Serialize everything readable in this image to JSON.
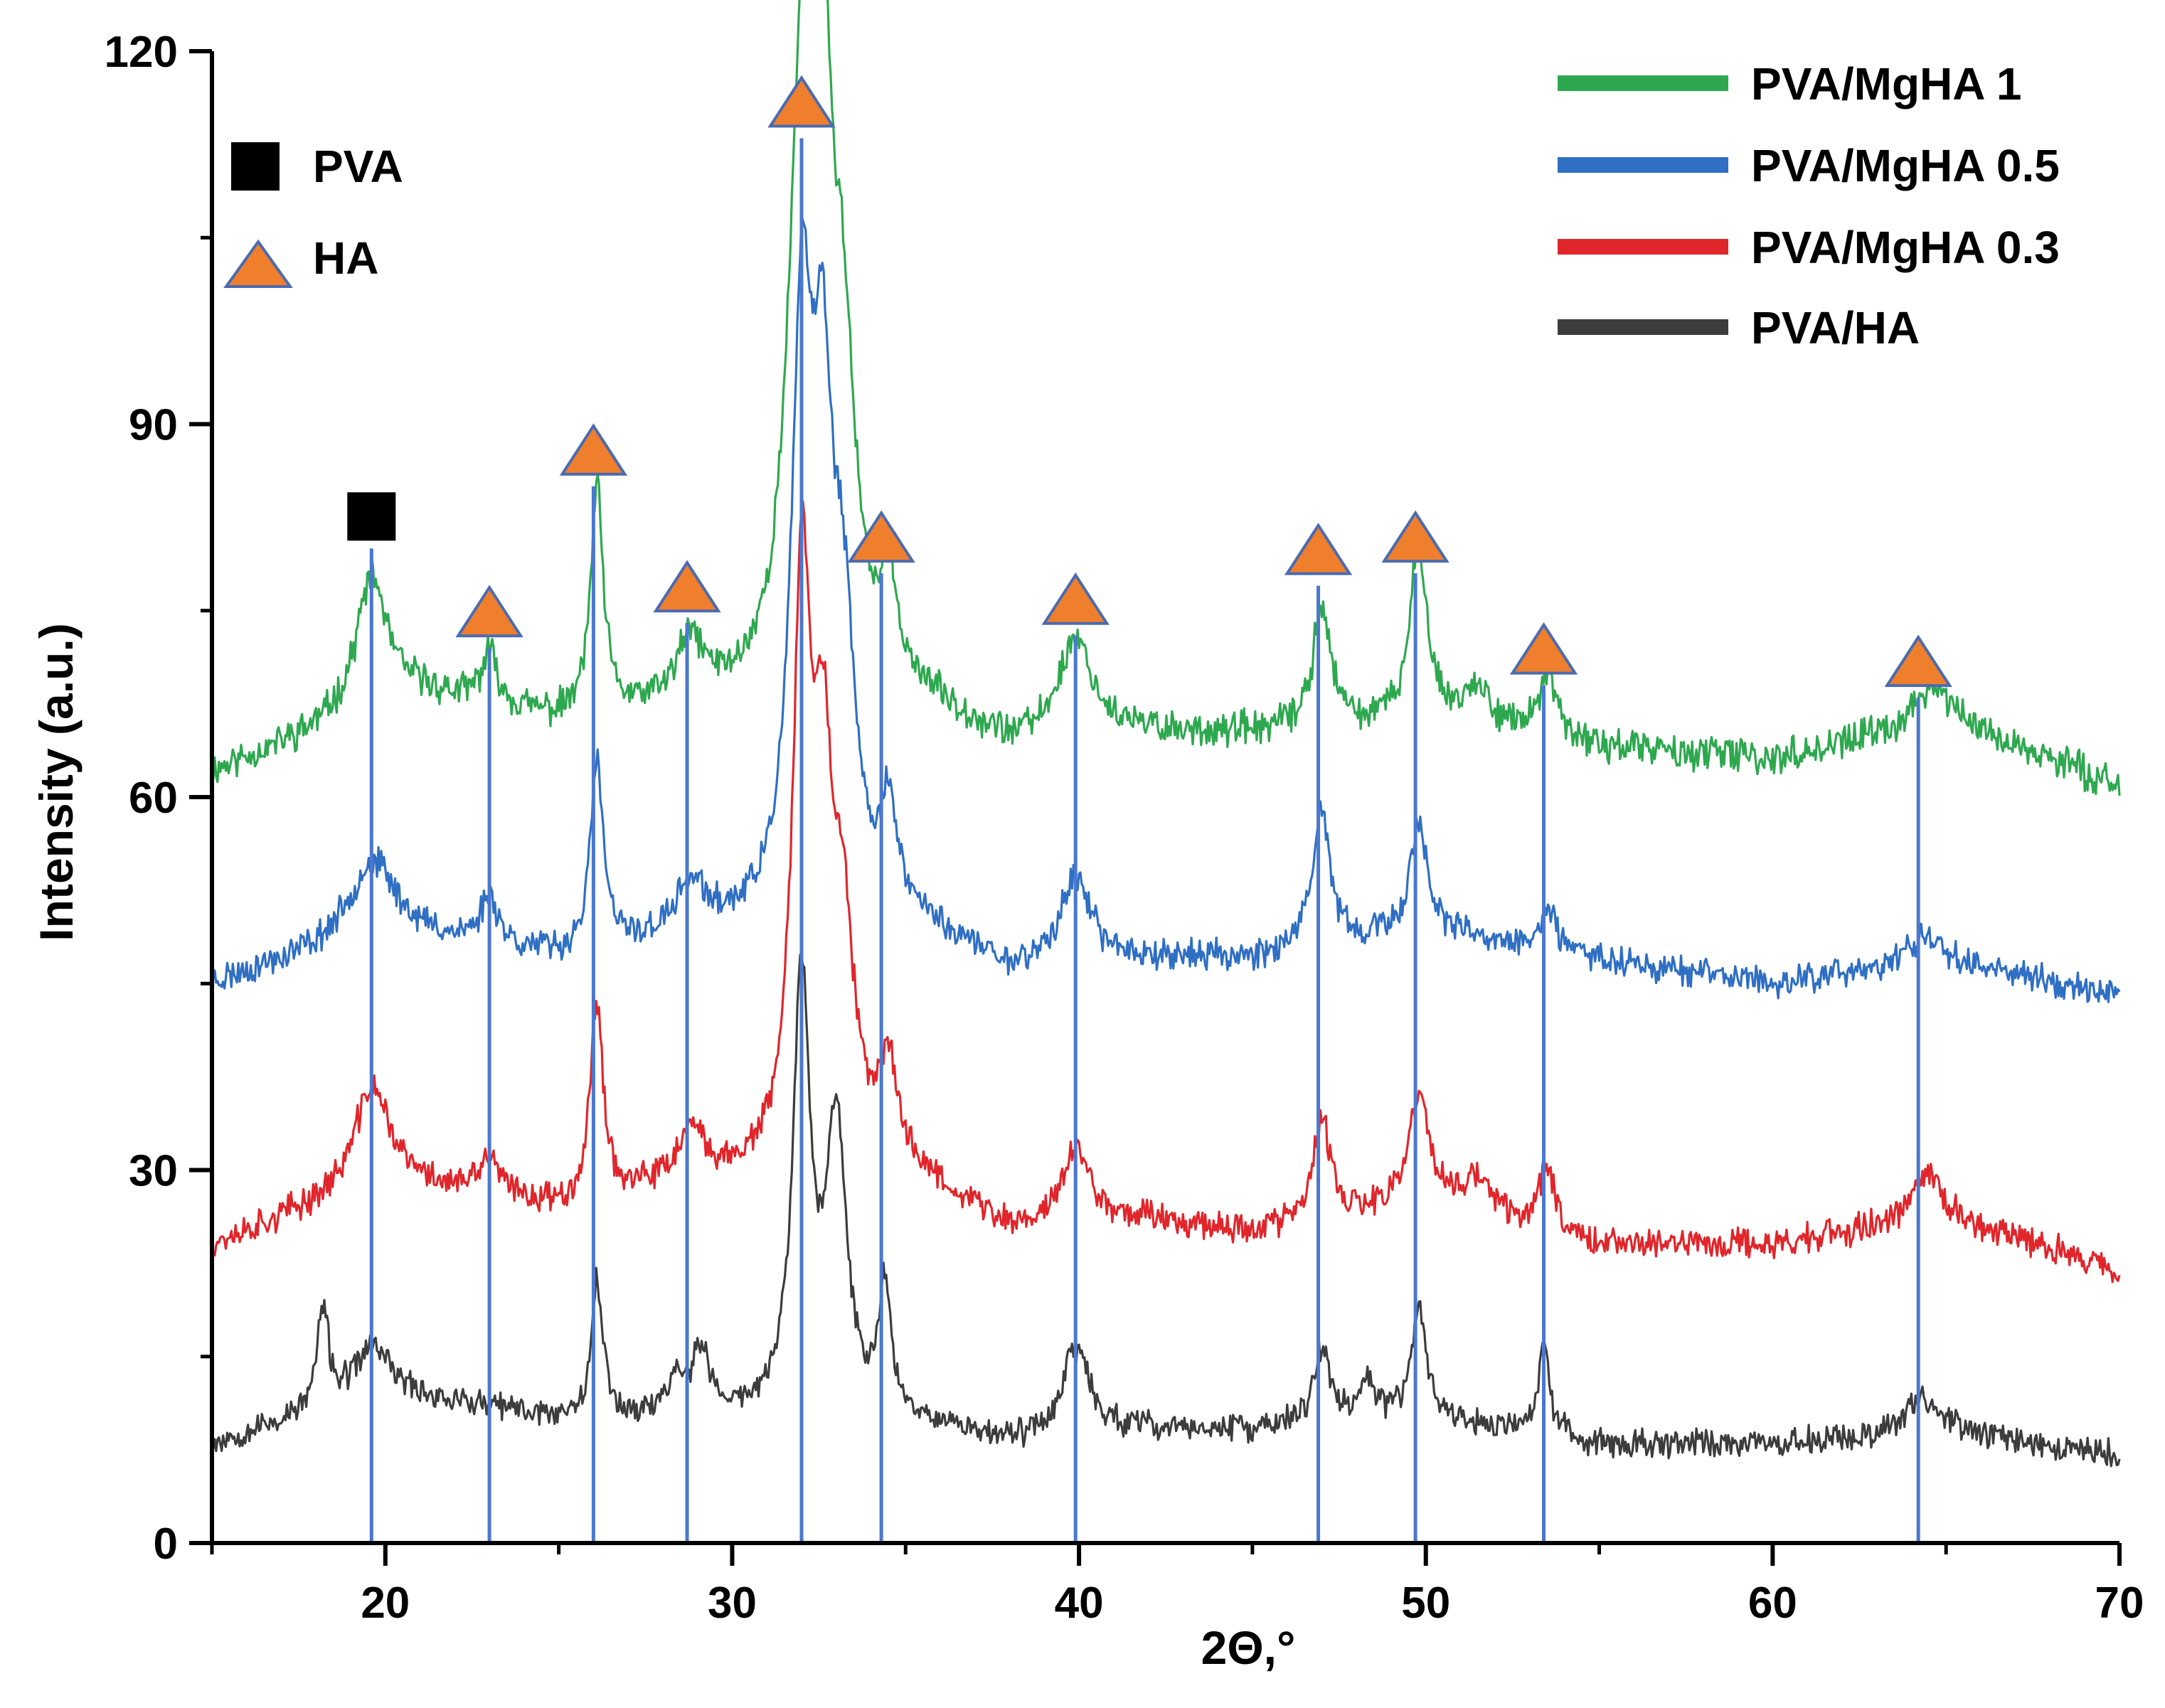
{
  "chart_data": {
    "type": "line",
    "title": "",
    "xlabel": "2Θ,°",
    "ylabel": "Intensity  (a.u.)",
    "xlim": [
      15,
      70
    ],
    "ylim": [
      0,
      120
    ],
    "x_ticks": [
      20,
      30,
      40,
      50,
      60,
      70
    ],
    "y_ticks": [
      0,
      30,
      60,
      90,
      120
    ],
    "colors": {
      "PVA/MgHA 1": "#2ea84f",
      "PVA/MgHA 0.5": "#2f6fc4",
      "PVA/MgHA 0.3": "#e0262b",
      "PVA/HA": "#3c3c3c",
      "reference_line": "#4a78d0",
      "triangle_fill": "#ef7f2d",
      "triangle_stroke": "#4a6bb0",
      "square_fill": "#000000"
    },
    "legend": {
      "placement": "top-right",
      "entries": [
        "PVA/MgHA 1",
        "PVA/MgHA 0.5",
        "PVA/MgHA 0.3",
        "PVA/HA"
      ]
    },
    "marker_legend": {
      "placement": "top-left",
      "entries": [
        {
          "symbol": "square",
          "label": "PVA"
        },
        {
          "symbol": "triangle",
          "label": "HA"
        }
      ]
    },
    "series": [
      {
        "name": "PVA/MgHA 1",
        "baseline": [
          [
            15,
            62
          ],
          [
            18,
            65
          ],
          [
            21,
            68
          ],
          [
            25,
            66
          ],
          [
            30,
            67
          ],
          [
            35,
            68
          ],
          [
            38,
            64
          ],
          [
            42,
            65
          ],
          [
            45,
            65
          ],
          [
            50,
            66
          ],
          [
            55,
            64
          ],
          [
            60,
            63
          ],
          [
            65,
            66
          ],
          [
            70,
            61
          ]
        ],
        "peaks": [
          [
            19.6,
            11,
            0.55
          ],
          [
            23.0,
            4,
            0.3
          ],
          [
            26.1,
            18,
            0.22
          ],
          [
            28.8,
            5,
            0.5
          ],
          [
            32.0,
            46,
            0.45
          ],
          [
            32.6,
            40,
            0.35
          ],
          [
            33.2,
            22,
            0.4
          ],
          [
            34.5,
            8,
            0.25
          ],
          [
            39.9,
            8,
            0.6
          ],
          [
            47.0,
            10,
            0.3
          ],
          [
            49.8,
            14,
            0.3
          ],
          [
            51.5,
            3,
            0.5
          ],
          [
            53.5,
            5,
            0.3
          ],
          [
            64.6,
            3,
            0.6
          ]
        ],
        "noise": 1.1,
        "seed": 11
      },
      {
        "name": "PVA/MgHA 0.5",
        "baseline": [
          [
            15,
            45
          ],
          [
            20,
            49
          ],
          [
            25,
            47
          ],
          [
            30,
            49
          ],
          [
            35,
            50
          ],
          [
            38,
            46
          ],
          [
            42,
            47
          ],
          [
            45,
            47
          ],
          [
            50,
            49
          ],
          [
            55,
            47
          ],
          [
            60,
            45
          ],
          [
            65,
            47
          ],
          [
            70,
            44
          ]
        ],
        "peaks": [
          [
            19.6,
            6,
            0.8
          ],
          [
            23.0,
            4,
            0.3
          ],
          [
            26.1,
            15,
            0.22
          ],
          [
            28.8,
            4,
            0.5
          ],
          [
            32.0,
            45,
            0.35
          ],
          [
            32.6,
            35,
            0.35
          ],
          [
            33.2,
            20,
            0.4
          ],
          [
            34.5,
            8,
            0.25
          ],
          [
            39.9,
            7,
            0.5
          ],
          [
            47.0,
            11,
            0.3
          ],
          [
            49.8,
            9,
            0.3
          ],
          [
            53.5,
            3,
            0.3
          ],
          [
            64.4,
            2,
            0.5
          ]
        ],
        "noise": 1.0,
        "seed": 23
      },
      {
        "name": "PVA/MgHA 0.3",
        "baseline": [
          [
            15,
            24
          ],
          [
            20,
            29
          ],
          [
            25,
            27
          ],
          [
            30,
            29
          ],
          [
            35,
            30
          ],
          [
            38,
            25
          ],
          [
            42,
            26
          ],
          [
            45,
            25
          ],
          [
            50,
            27
          ],
          [
            55,
            24
          ],
          [
            60,
            24
          ],
          [
            65,
            26
          ],
          [
            70,
            22
          ]
        ],
        "peaks": [
          [
            19.6,
            8,
            0.6
          ],
          [
            23.0,
            3,
            0.3
          ],
          [
            26.1,
            16,
            0.22
          ],
          [
            28.8,
            4,
            0.5
          ],
          [
            32.0,
            45,
            0.3
          ],
          [
            32.6,
            28,
            0.35
          ],
          [
            33.2,
            16,
            0.4
          ],
          [
            34.5,
            8,
            0.25
          ],
          [
            39.9,
            6,
            0.5
          ],
          [
            47.0,
            8,
            0.3
          ],
          [
            49.8,
            9,
            0.35
          ],
          [
            51.5,
            3,
            0.5
          ],
          [
            53.5,
            5,
            0.3
          ],
          [
            64.4,
            4,
            0.5
          ]
        ],
        "noise": 1.0,
        "seed": 37
      },
      {
        "name": "PVA/HA",
        "baseline": [
          [
            15,
            8
          ],
          [
            20,
            12
          ],
          [
            25,
            10
          ],
          [
            30,
            10
          ],
          [
            35,
            10
          ],
          [
            38,
            8
          ],
          [
            42,
            9
          ],
          [
            45,
            9
          ],
          [
            50,
            10
          ],
          [
            55,
            8
          ],
          [
            60,
            8
          ],
          [
            65,
            9
          ],
          [
            70,
            7
          ]
        ],
        "peaks": [
          [
            18.2,
            8,
            0.2
          ],
          [
            19.6,
            4,
            0.6
          ],
          [
            26.1,
            11,
            0.2
          ],
          [
            28.4,
            3,
            0.3
          ],
          [
            29.1,
            5,
            0.3
          ],
          [
            32.0,
            35,
            0.3
          ],
          [
            33.0,
            23,
            0.35
          ],
          [
            34.4,
            10,
            0.2
          ],
          [
            39.9,
            7,
            0.5
          ],
          [
            47.0,
            6,
            0.3
          ],
          [
            48.3,
            3,
            0.3
          ],
          [
            49.8,
            9,
            0.25
          ],
          [
            53.4,
            7,
            0.2
          ],
          [
            64.3,
            3,
            0.5
          ]
        ],
        "noise": 0.9,
        "seed": 53
      }
    ],
    "reference_lines": [
      {
        "x": 19.6,
        "top": 80,
        "marker": "square"
      },
      {
        "x": 23.0,
        "top": 72,
        "marker": "triangle"
      },
      {
        "x": 26.0,
        "top": 85,
        "marker": "triangle"
      },
      {
        "x": 28.7,
        "top": 74,
        "marker": "triangle"
      },
      {
        "x": 32.0,
        "top": 113,
        "marker": "triangle"
      },
      {
        "x": 34.3,
        "top": 78,
        "marker": "triangle"
      },
      {
        "x": 39.9,
        "top": 73,
        "marker": "triangle"
      },
      {
        "x": 46.9,
        "top": 77,
        "marker": "triangle"
      },
      {
        "x": 49.7,
        "top": 78,
        "marker": "triangle"
      },
      {
        "x": 53.4,
        "top": 69,
        "marker": "triangle"
      },
      {
        "x": 64.2,
        "top": 68,
        "marker": "triangle"
      }
    ]
  }
}
